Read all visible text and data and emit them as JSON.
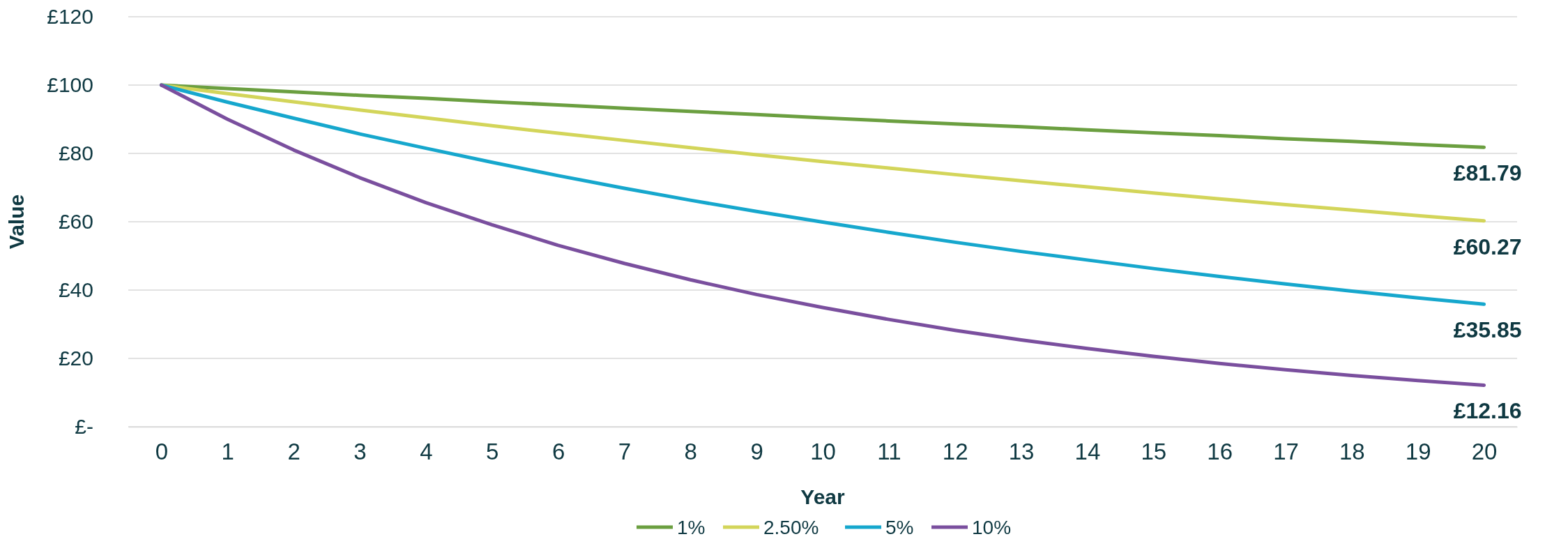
{
  "chart_data": {
    "type": "line",
    "xlabel": "Year",
    "ylabel": "Value",
    "x": [
      0,
      1,
      2,
      3,
      4,
      5,
      6,
      7,
      8,
      9,
      10,
      11,
      12,
      13,
      14,
      15,
      16,
      17,
      18,
      19,
      20
    ],
    "xlim": [
      -0.5,
      20.5
    ],
    "xticks": [
      0,
      1,
      2,
      3,
      4,
      5,
      6,
      7,
      8,
      9,
      10,
      11,
      12,
      13,
      14,
      15,
      16,
      17,
      18,
      19,
      20
    ],
    "series": [
      {
        "name": "1%",
        "color": "#6b9f40",
        "values": [
          100,
          99,
          98,
          97,
          96.1,
          95.1,
          94.2,
          93.2,
          92.3,
          91.4,
          90.4,
          89.5,
          88.6,
          87.8,
          86.9,
          86,
          85.2,
          84.3,
          83.5,
          82.6,
          81.79
        ],
        "value_labels": [
          null,
          null,
          null,
          null,
          null,
          null,
          null,
          null,
          null,
          null,
          null,
          null,
          null,
          null,
          null,
          null,
          null,
          null,
          null,
          null,
          "£81.79"
        ]
      },
      {
        "name": "2.50%",
        "color": "#d3d55a",
        "values": [
          100,
          97.5,
          95.1,
          92.7,
          90.4,
          88.1,
          85.9,
          83.8,
          81.7,
          79.6,
          77.6,
          75.7,
          73.8,
          72,
          70.2,
          68.4,
          66.7,
          65,
          63.4,
          61.8,
          60.27
        ],
        "value_labels": [
          null,
          null,
          null,
          null,
          null,
          null,
          null,
          null,
          null,
          null,
          null,
          null,
          null,
          null,
          null,
          null,
          null,
          null,
          null,
          null,
          "£60.27"
        ]
      },
      {
        "name": "5%",
        "color": "#16a7cd",
        "values": [
          100,
          95,
          90.3,
          85.7,
          81.5,
          77.4,
          73.5,
          69.8,
          66.3,
          63,
          59.9,
          56.9,
          54,
          51.3,
          48.8,
          46.3,
          44,
          41.8,
          39.7,
          37.7,
          35.85
        ],
        "value_labels": [
          null,
          null,
          null,
          null,
          null,
          null,
          null,
          null,
          null,
          null,
          null,
          null,
          null,
          null,
          null,
          null,
          null,
          null,
          null,
          null,
          "£35.85"
        ]
      },
      {
        "name": "10%",
        "color": "#7a4f9e",
        "values": [
          100,
          90,
          81,
          72.9,
          65.6,
          59.1,
          53.1,
          47.8,
          43,
          38.7,
          34.9,
          31.4,
          28.2,
          25.4,
          22.9,
          20.6,
          18.5,
          16.7,
          15,
          13.5,
          12.16
        ],
        "value_labels": [
          null,
          null,
          null,
          null,
          null,
          null,
          null,
          null,
          null,
          null,
          null,
          null,
          null,
          null,
          null,
          null,
          null,
          null,
          null,
          null,
          "£12.16"
        ]
      }
    ],
    "ylim": [
      0,
      120
    ],
    "yticks": [
      {
        "value": 0,
        "label": "£-"
      },
      {
        "value": 20,
        "label": "£20"
      },
      {
        "value": 40,
        "label": "£40"
      },
      {
        "value": 60,
        "label": "£60"
      },
      {
        "value": 80,
        "label": "£80"
      },
      {
        "value": 100,
        "label": "£100"
      },
      {
        "value": 120,
        "label": "£120"
      }
    ],
    "grid": "y",
    "legend": "bottom",
    "marker": "none",
    "line_style": "solid"
  }
}
